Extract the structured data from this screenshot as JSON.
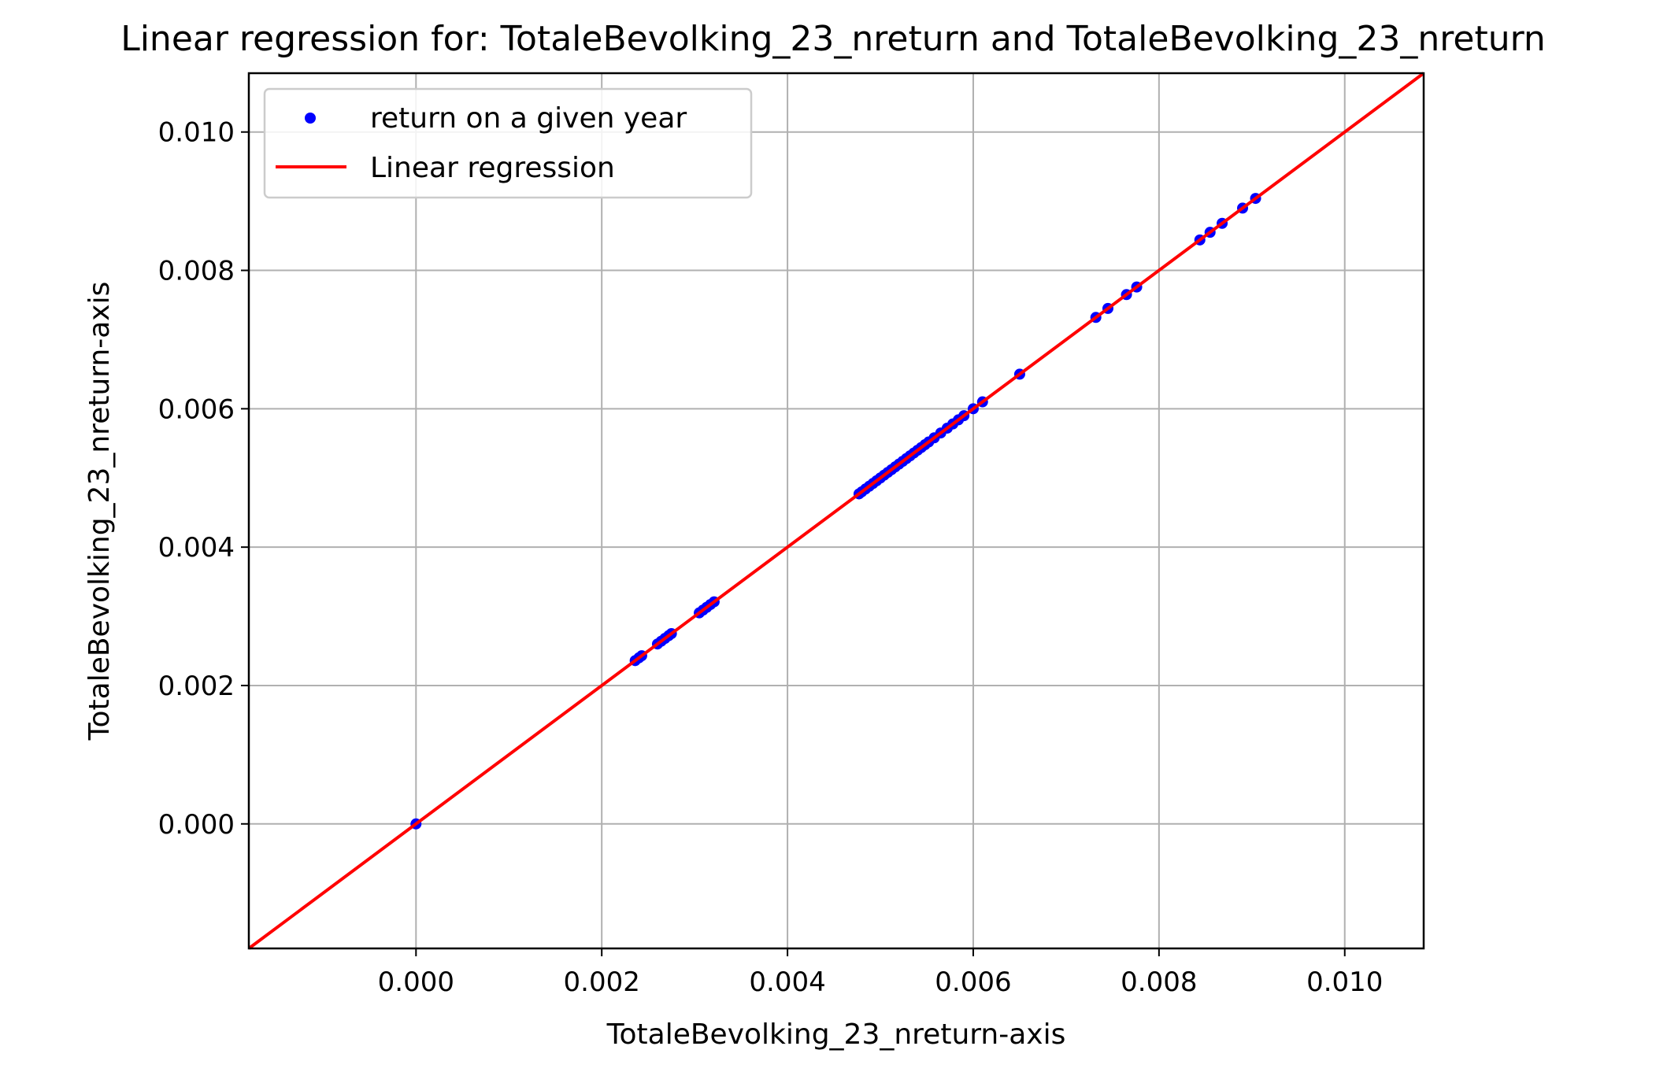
{
  "chart_data": {
    "type": "scatter",
    "title": "Linear regression for: TotaleBevolking_23_nreturn and TotaleBevolking_23_nreturn",
    "xlabel": "TotaleBevolking_23_nreturn-axis",
    "ylabel": "TotaleBevolking_23_nreturn-axis",
    "xlim": [
      -0.0018,
      0.01085
    ],
    "ylim": [
      -0.0018,
      0.01085
    ],
    "xticks": [
      0.0,
      0.002,
      0.004,
      0.006,
      0.008,
      0.01
    ],
    "yticks": [
      0.0,
      0.002,
      0.004,
      0.006,
      0.008,
      0.01
    ],
    "xtick_labels": [
      "0.000",
      "0.002",
      "0.004",
      "0.006",
      "0.008",
      "0.010"
    ],
    "ytick_labels": [
      "0.000",
      "0.002",
      "0.004",
      "0.006",
      "0.008",
      "0.010"
    ],
    "grid": true,
    "legend_position": "top-left",
    "series": [
      {
        "name": "return on a given year",
        "kind": "scatter",
        "color": "#0000ff",
        "points": [
          [
            0.0,
            0.0
          ],
          [
            0.00236,
            0.00236
          ],
          [
            0.0024,
            0.0024
          ],
          [
            0.00243,
            0.00243
          ],
          [
            0.0026,
            0.0026
          ],
          [
            0.00264,
            0.00264
          ],
          [
            0.00268,
            0.00268
          ],
          [
            0.00272,
            0.00272
          ],
          [
            0.00275,
            0.00275
          ],
          [
            0.00305,
            0.00305
          ],
          [
            0.00309,
            0.00309
          ],
          [
            0.00313,
            0.00313
          ],
          [
            0.00317,
            0.00317
          ],
          [
            0.00321,
            0.00321
          ],
          [
            0.00477,
            0.00477
          ],
          [
            0.0048,
            0.0048
          ],
          [
            0.00484,
            0.00484
          ],
          [
            0.00488,
            0.00488
          ],
          [
            0.00492,
            0.00492
          ],
          [
            0.00496,
            0.00496
          ],
          [
            0.005,
            0.005
          ],
          [
            0.00504,
            0.00504
          ],
          [
            0.00508,
            0.00508
          ],
          [
            0.00512,
            0.00512
          ],
          [
            0.00516,
            0.00516
          ],
          [
            0.0052,
            0.0052
          ],
          [
            0.00524,
            0.00524
          ],
          [
            0.00528,
            0.00528
          ],
          [
            0.00532,
            0.00532
          ],
          [
            0.00536,
            0.00536
          ],
          [
            0.0054,
            0.0054
          ],
          [
            0.00544,
            0.00544
          ],
          [
            0.00548,
            0.00548
          ],
          [
            0.00552,
            0.00552
          ],
          [
            0.00558,
            0.00558
          ],
          [
            0.00565,
            0.00565
          ],
          [
            0.00572,
            0.00572
          ],
          [
            0.00578,
            0.00578
          ],
          [
            0.00584,
            0.00584
          ],
          [
            0.0059,
            0.0059
          ],
          [
            0.006,
            0.006
          ],
          [
            0.0061,
            0.0061
          ],
          [
            0.0065,
            0.0065
          ],
          [
            0.00732,
            0.00732
          ],
          [
            0.00745,
            0.00745
          ],
          [
            0.00765,
            0.00765
          ],
          [
            0.00776,
            0.00776
          ],
          [
            0.00844,
            0.00844
          ],
          [
            0.00855,
            0.00855
          ],
          [
            0.00868,
            0.00868
          ],
          [
            0.0089,
            0.0089
          ],
          [
            0.00904,
            0.00904
          ]
        ]
      },
      {
        "name": "Linear regression",
        "kind": "line",
        "color": "#ff0000",
        "slope": 1.0,
        "intercept": 0.0
      }
    ]
  }
}
